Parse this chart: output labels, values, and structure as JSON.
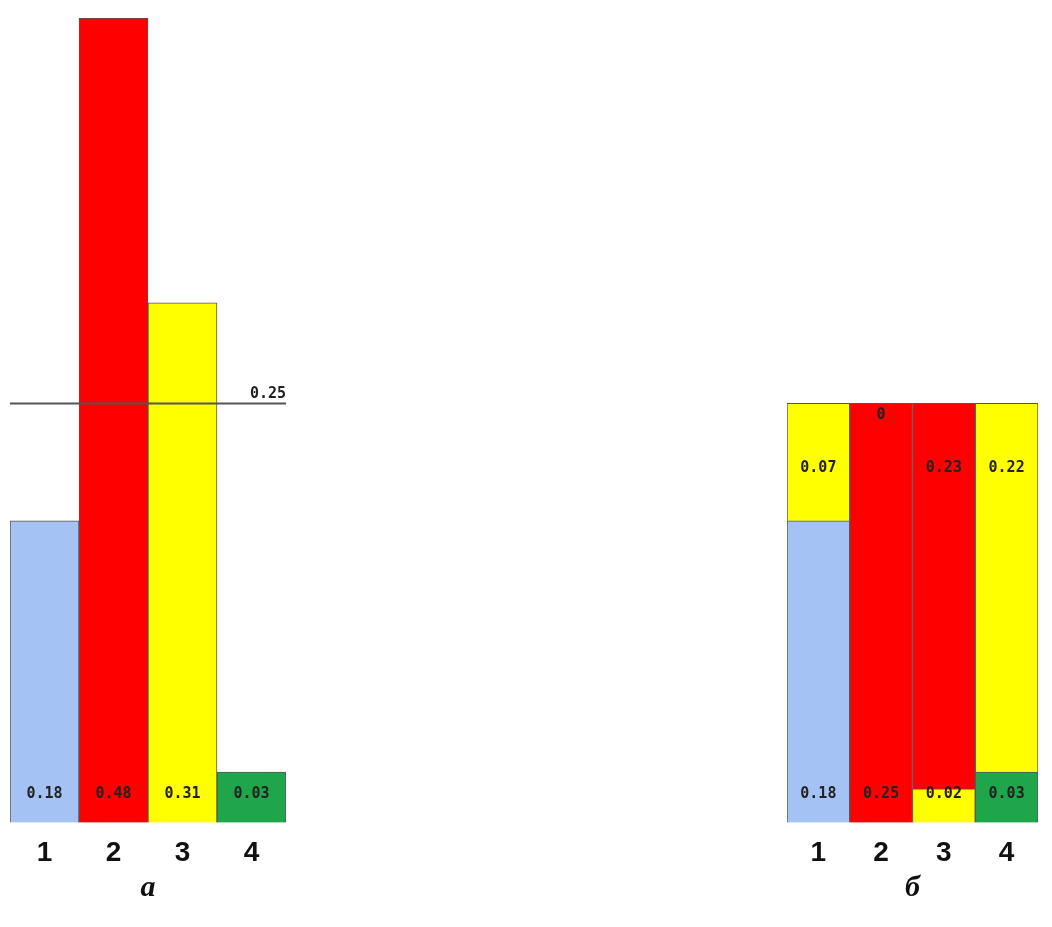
{
  "chart_data": [
    {
      "type": "bar",
      "xlabel": "а",
      "categories": [
        "1",
        "2",
        "3",
        "4"
      ],
      "values": [
        0.18,
        0.48,
        0.31,
        0.03
      ],
      "colors": [
        "#a4c2f4",
        "#ff0000",
        "#ffff00",
        "#1fa64a"
      ],
      "data_labels": true,
      "ref_lines": [
        {
          "axis": "y",
          "value": 0.25,
          "label": "0.25",
          "color": "#555555"
        }
      ]
    },
    {
      "type": "bar",
      "xlabel": "б",
      "categories": [
        "1",
        "2",
        "3",
        "4"
      ],
      "stacked": true,
      "data_labels": true,
      "series": [
        {
          "values": [
            0.18,
            0.25,
            0.02,
            0.03
          ],
          "colors": [
            "#a4c2f4",
            "#ff0000",
            "#ffff00",
            "#1fa64a"
          ]
        },
        {
          "values": [
            0.07,
            0,
            0.23,
            0.22
          ],
          "colors": [
            "#ffff00",
            "#ff0000",
            "#ff0000",
            "#ffff00"
          ]
        }
      ]
    }
  ]
}
